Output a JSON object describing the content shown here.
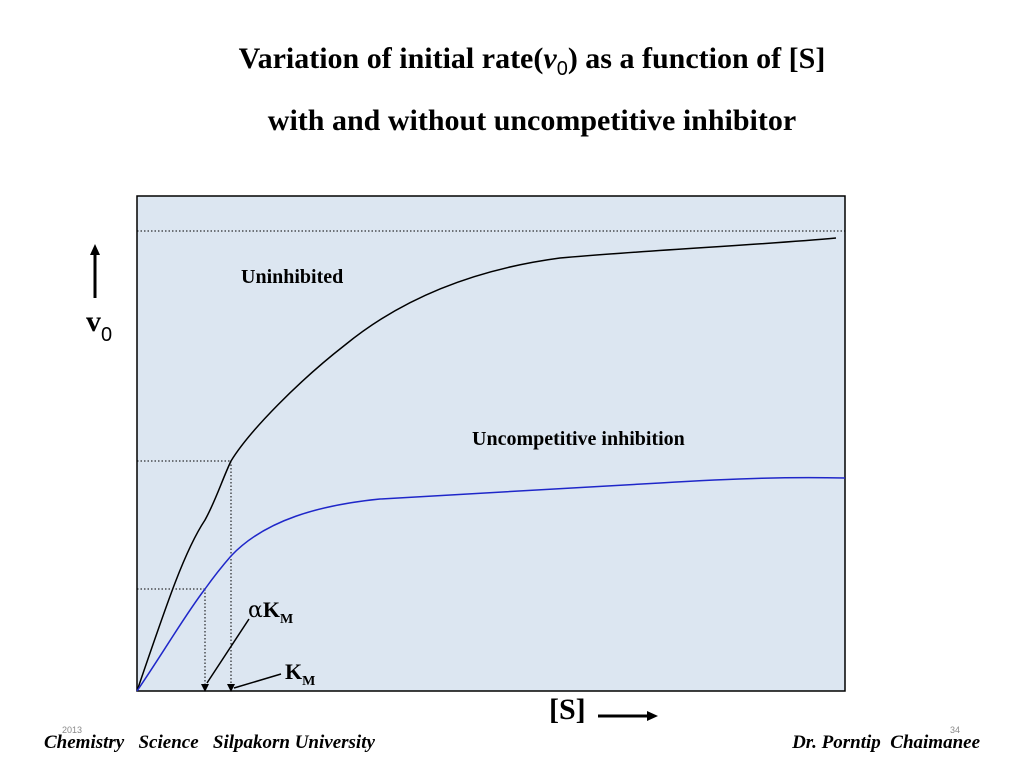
{
  "title": {
    "line1_pre": "Variation of initial rate(",
    "line1_var": "v",
    "line1_sub": "0",
    "line1_post": ") as a function of [S]",
    "line2": "with and without uncompetitive inhibitor"
  },
  "chart_data": {
    "type": "line",
    "title": "Variation of initial rate(v0) as a function of [S] with and without uncompetitive inhibitor",
    "ylabel": "v",
    "ylabel_sub": "0",
    "xlabel": "[S]",
    "grid": false,
    "series": [
      {
        "name": "Uninhibited",
        "color": "#000000",
        "points": [
          [
            0,
            0
          ],
          [
            0.05,
            0.2
          ],
          [
            0.09,
            0.36
          ],
          [
            0.13,
            0.47
          ],
          [
            0.2,
            0.56
          ],
          [
            0.3,
            0.65
          ],
          [
            0.4,
            0.73
          ],
          [
            0.5,
            0.79
          ],
          [
            0.6,
            0.84
          ],
          [
            0.7,
            0.87
          ],
          [
            0.8,
            0.89
          ],
          [
            0.9,
            0.9
          ],
          [
            1.0,
            0.92
          ]
        ]
      },
      {
        "name": "Uncompetitive inhibition",
        "color": "#1f27c9",
        "points": [
          [
            0,
            0
          ],
          [
            0.05,
            0.12
          ],
          [
            0.1,
            0.22
          ],
          [
            0.15,
            0.29
          ],
          [
            0.2,
            0.33
          ],
          [
            0.3,
            0.37
          ],
          [
            0.4,
            0.385
          ],
          [
            0.5,
            0.395
          ],
          [
            0.6,
            0.405
          ],
          [
            0.7,
            0.41
          ],
          [
            0.8,
            0.415
          ],
          [
            0.9,
            0.42
          ],
          [
            1.0,
            0.42
          ]
        ]
      }
    ],
    "annotations": {
      "alpha_km_pre": "α",
      "alpha_km_main": "K",
      "alpha_km_sub": "M",
      "km_main": "K",
      "km_sub": "M"
    }
  },
  "footer": {
    "left": "Chemistry   Science   Silpakorn University",
    "right": "Dr. Porntip  Chaimanee",
    "year": "2013",
    "page": "34"
  }
}
